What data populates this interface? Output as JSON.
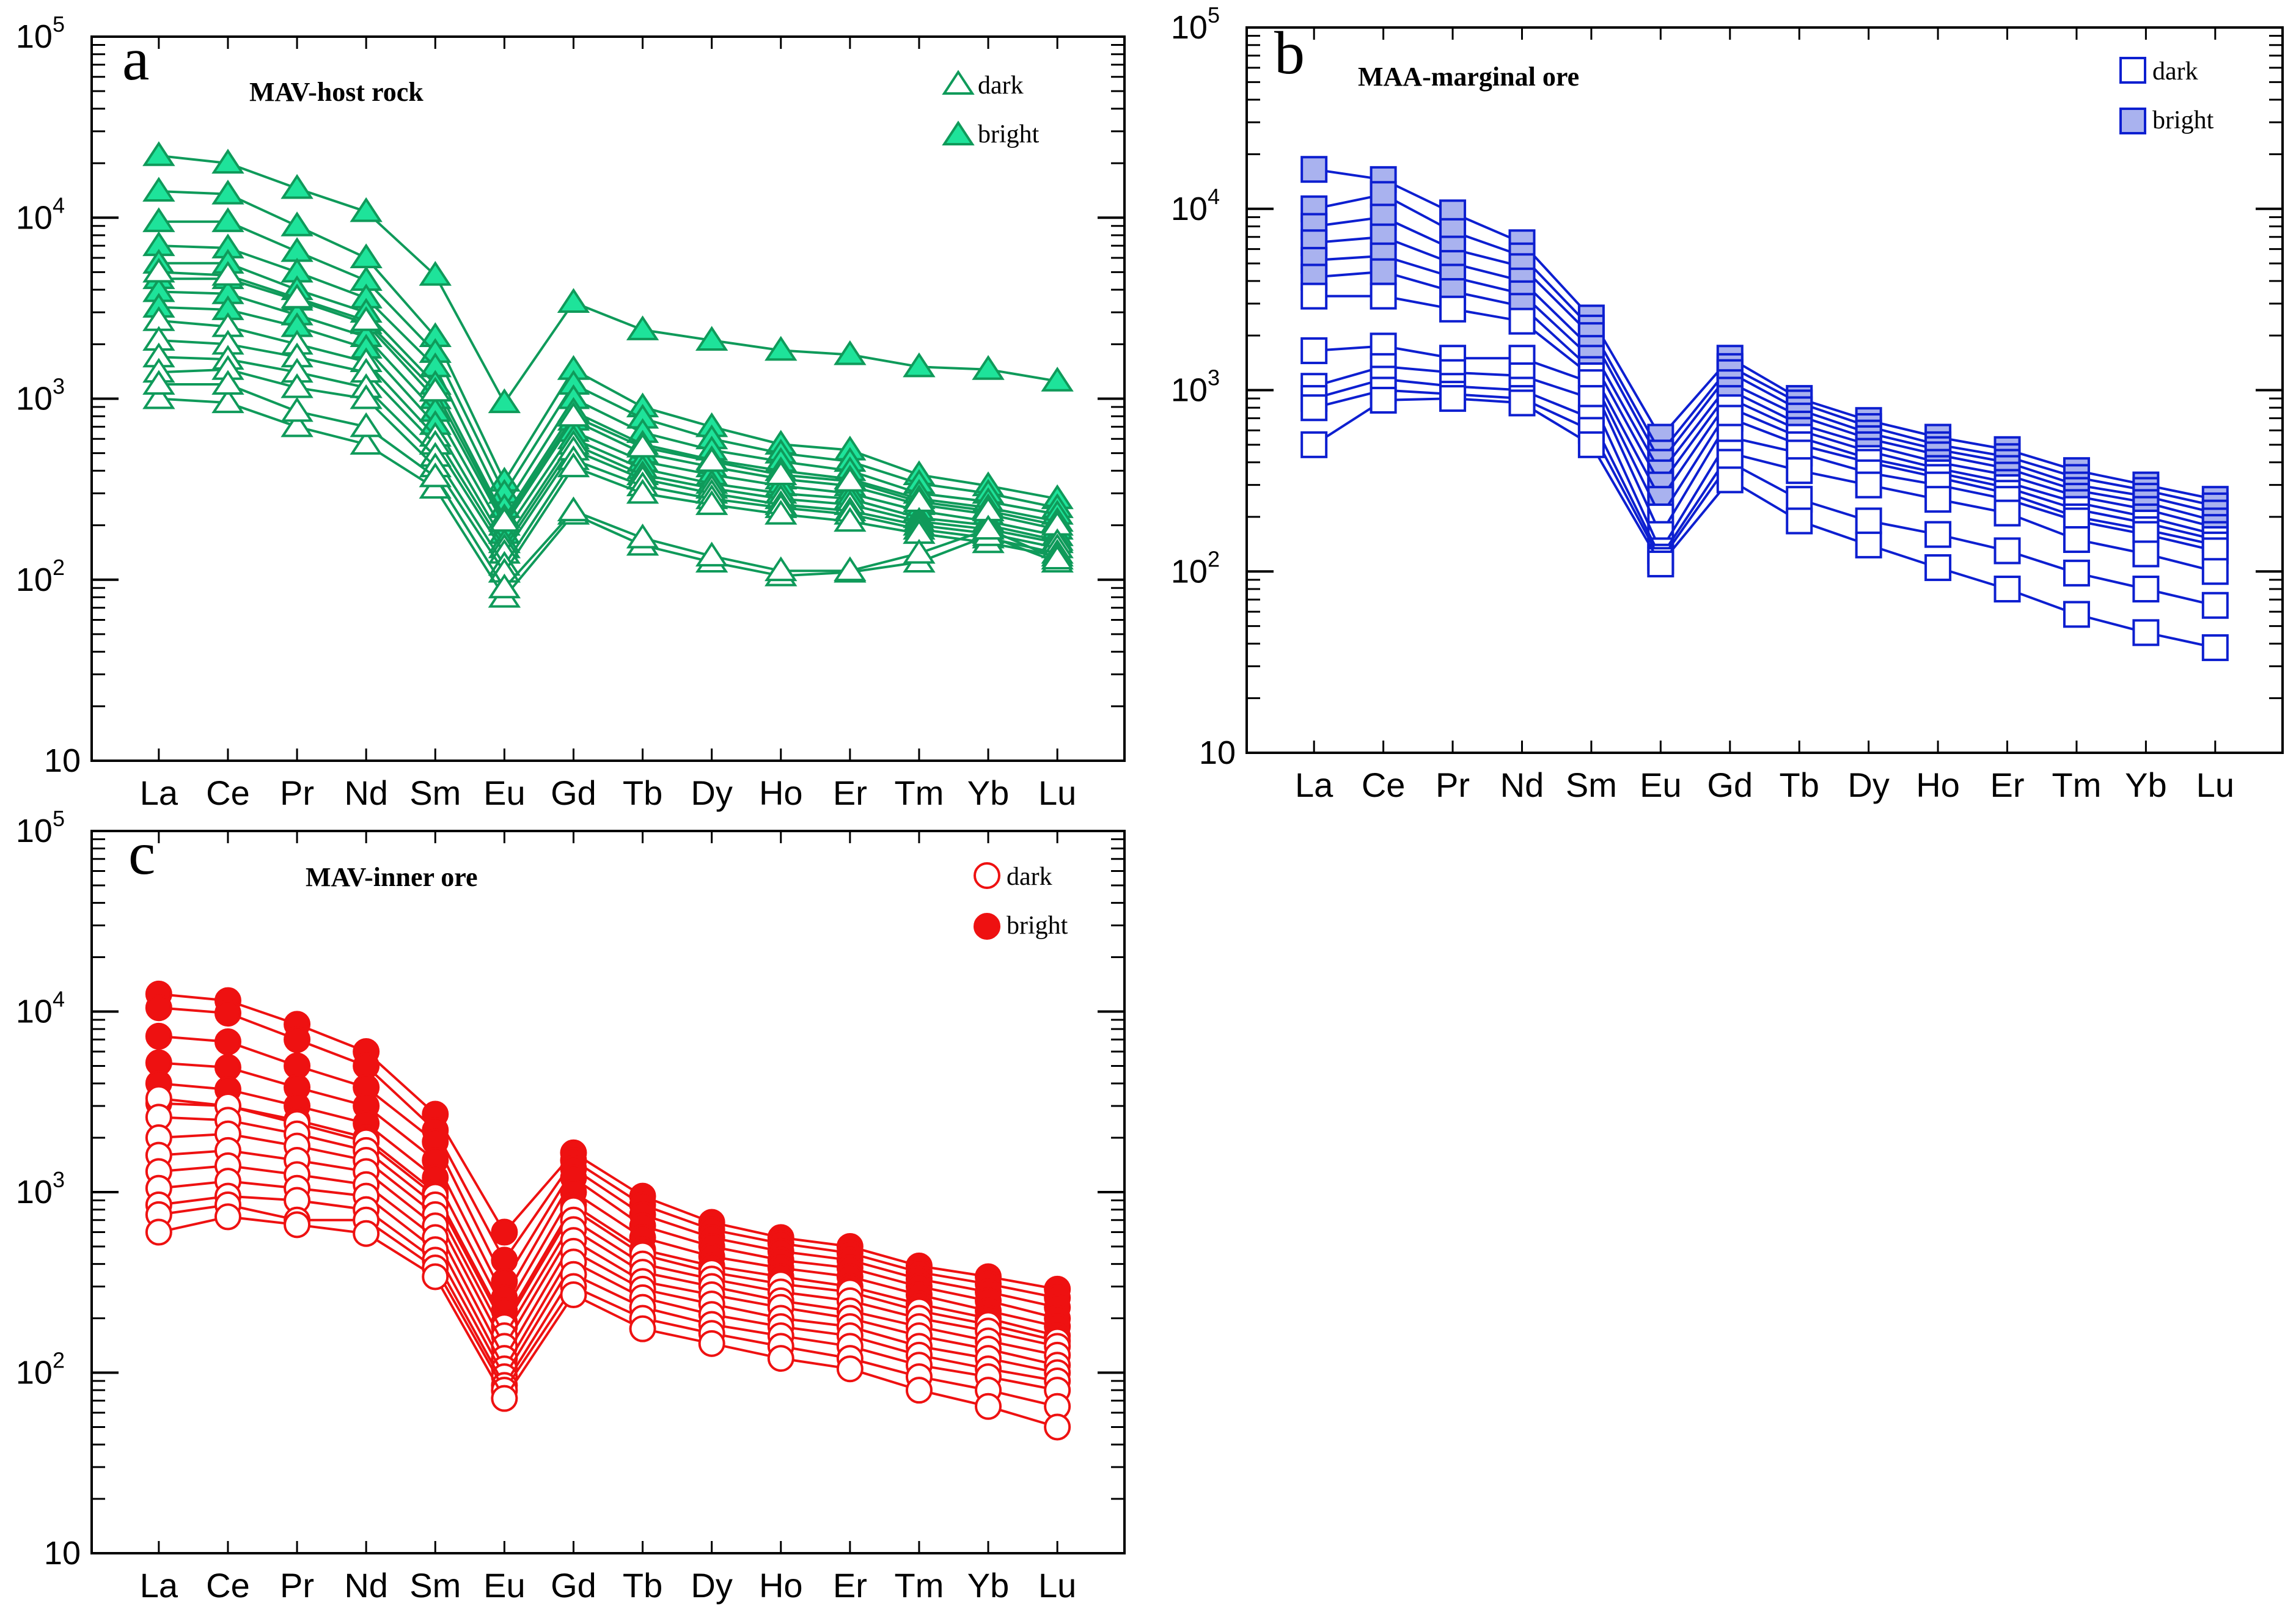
{
  "figure": {
    "categories": [
      "La",
      "Ce",
      "Pr",
      "Nd",
      "Sm",
      "Eu",
      "Gd",
      "Tb",
      "Dy",
      "Ho",
      "Er",
      "Tm",
      "Yb",
      "Lu"
    ],
    "y_ticks": [
      {
        "value": 10,
        "base": "10",
        "exp": ""
      },
      {
        "value": 100,
        "base": "10",
        "exp": "2"
      },
      {
        "value": 1000,
        "base": "10",
        "exp": "3"
      },
      {
        "value": 10000,
        "base": "10",
        "exp": "4"
      },
      {
        "value": 100000,
        "base": "10",
        "exp": "5"
      }
    ]
  },
  "chart_data": [
    {
      "type": "line",
      "panel": "a",
      "title": "MAV-host rock",
      "yscale": "log",
      "ylim": [
        10,
        100000
      ],
      "color": "#0f9a5a",
      "fill": "#1ee39a",
      "marker": "triangle",
      "legend": {
        "dark_label": "dark",
        "bright_label": "bright"
      },
      "categories": [
        "La",
        "Ce",
        "Pr",
        "Nd",
        "Sm",
        "Eu",
        "Gd",
        "Tb",
        "Dy",
        "Ho",
        "Er",
        "Tm",
        "Yb",
        "Lu"
      ],
      "series": [
        {
          "name": "bright",
          "values": [
            22000,
            20000,
            14500,
            10800,
            4800,
            950,
            3400,
            2400,
            2100,
            1850,
            1750,
            1500,
            1450,
            1250
          ]
        },
        {
          "name": "bright",
          "values": [
            14000,
            13500,
            9000,
            6000,
            2200,
            350,
            1450,
            900,
            700,
            560,
            520,
            380,
            330,
            280
          ]
        },
        {
          "name": "bright",
          "values": [
            9500,
            9500,
            6500,
            4500,
            1800,
            300,
            1200,
            780,
            600,
            500,
            450,
            340,
            300,
            250
          ]
        },
        {
          "name": "bright",
          "values": [
            7000,
            6800,
            5000,
            3600,
            1500,
            250,
            1000,
            650,
            520,
            450,
            400,
            300,
            270,
            230
          ]
        },
        {
          "name": "bright",
          "values": [
            5600,
            5600,
            4000,
            3000,
            1200,
            220,
            850,
            560,
            460,
            400,
            360,
            280,
            250,
            210
          ]
        },
        {
          "name": "bright",
          "values": [
            4600,
            4600,
            3500,
            2600,
            1000,
            200,
            760,
            500,
            420,
            360,
            330,
            260,
            230,
            190
          ]
        },
        {
          "name": "bright",
          "values": [
            3900,
            3800,
            2900,
            2200,
            850,
            180,
            660,
            450,
            380,
            330,
            300,
            240,
            210,
            175
          ]
        },
        {
          "name": "bright",
          "values": [
            3200,
            3100,
            2500,
            1900,
            720,
            160,
            600,
            410,
            340,
            300,
            280,
            220,
            200,
            165
          ]
        },
        {
          "name": "dark",
          "values": [
            5000,
            4800,
            3600,
            2700,
            1100,
            210,
            800,
            540,
            450,
            380,
            350,
            270,
            240,
            200
          ]
        },
        {
          "name": "dark",
          "values": [
            2700,
            2500,
            2000,
            1600,
            620,
            150,
            560,
            380,
            320,
            280,
            260,
            210,
            190,
            160
          ]
        },
        {
          "name": "dark",
          "values": [
            2100,
            2000,
            1700,
            1400,
            560,
            140,
            520,
            360,
            300,
            260,
            240,
            200,
            180,
            150
          ]
        },
        {
          "name": "dark",
          "values": [
            1700,
            1650,
            1400,
            1150,
            480,
            120,
            460,
            330,
            280,
            250,
            230,
            190,
            170,
            140
          ]
        },
        {
          "name": "dark",
          "values": [
            1400,
            1450,
            1150,
            1000,
            420,
            110,
            420,
            300,
            260,
            230,
            210,
            180,
            160,
            135
          ]
        },
        {
          "name": "dark",
          "values": [
            1000,
            950,
            700,
            560,
            320,
            80,
            230,
            155,
            125,
            105,
            110,
            125,
            175,
            125
          ]
        },
        {
          "name": "dark",
          "values": [
            1200,
            1200,
            850,
            700,
            370,
            90,
            240,
            170,
            135,
            112,
            112,
            140,
            190,
            130
          ]
        }
      ]
    },
    {
      "type": "line",
      "panel": "b",
      "title": "MAA-marginal ore",
      "yscale": "log",
      "ylim": [
        10,
        100000
      ],
      "color": "#0d1fd0",
      "fill": "#a9b2ef",
      "marker": "square",
      "legend": {
        "dark_label": "dark",
        "bright_label": "bright"
      },
      "categories": [
        "La",
        "Ce",
        "Pr",
        "Nd",
        "Sm",
        "Eu",
        "Gd",
        "Tb",
        "Dy",
        "Ho",
        "Er",
        "Tm",
        "Yb",
        "Lu"
      ],
      "series": [
        {
          "name": "bright",
          "values": [
            16500,
            14500,
            9500,
            6500,
            2500,
            550,
            1500,
            900,
            680,
            550,
            470,
            360,
            300,
            250
          ]
        },
        {
          "name": "bright",
          "values": [
            10000,
            12000,
            7500,
            5500,
            2200,
            450,
            1350,
            850,
            630,
            500,
            430,
            330,
            280,
            230
          ]
        },
        {
          "name": "bright",
          "values": [
            8000,
            9000,
            6000,
            4800,
            2000,
            400,
            1250,
            780,
            580,
            470,
            400,
            300,
            260,
            210
          ]
        },
        {
          "name": "bright",
          "values": [
            6500,
            7000,
            5000,
            4000,
            1700,
            350,
            1100,
            720,
            540,
            440,
            370,
            280,
            240,
            190
          ]
        },
        {
          "name": "bright",
          "values": [
            5200,
            5500,
            4200,
            3400,
            1500,
            300,
            1000,
            650,
            500,
            400,
            340,
            260,
            220,
            175
          ]
        },
        {
          "name": "bright",
          "values": [
            4200,
            4500,
            3500,
            2900,
            1300,
            250,
            900,
            600,
            460,
            370,
            310,
            240,
            200,
            160
          ]
        },
        {
          "name": "dark",
          "values": [
            3300,
            3300,
            2800,
            2400,
            1200,
            200,
            800,
            550,
            420,
            350,
            290,
            220,
            185,
            150
          ]
        },
        {
          "name": "dark",
          "values": [
            1650,
            1750,
            1500,
            1500,
            1100,
            160,
            700,
            500,
            400,
            330,
            270,
            200,
            170,
            140
          ]
        },
        {
          "name": "dark",
          "values": [
            1050,
            1350,
            1250,
            1200,
            900,
            130,
            550,
            450,
            350,
            300,
            250,
            190,
            160,
            130
          ]
        },
        {
          "name": "dark",
          "values": [
            900,
            1150,
            1050,
            1000,
            700,
            120,
            450,
            360,
            300,
            250,
            210,
            150,
            125,
            100
          ]
        },
        {
          "name": "dark",
          "values": [
            800,
            1000,
            950,
            900,
            600,
            115,
            400,
            250,
            190,
            160,
            130,
            98,
            80,
            65
          ]
        },
        {
          "name": "dark",
          "values": [
            500,
            880,
            900,
            850,
            500,
            110,
            320,
            190,
            140,
            105,
            80,
            58,
            46,
            38
          ]
        }
      ]
    },
    {
      "type": "line",
      "panel": "c",
      "title": "MAV-inner ore",
      "yscale": "log",
      "ylim": [
        10,
        100000
      ],
      "color": "#ee1111",
      "fill": "#ee1111",
      "marker": "circle",
      "legend": {
        "dark_label": "dark",
        "bright_label": "bright"
      },
      "categories": [
        "La",
        "Ce",
        "Pr",
        "Nd",
        "Sm",
        "Eu",
        "Gd",
        "Tb",
        "Dy",
        "Ho",
        "Er",
        "Tm",
        "Yb",
        "Lu"
      ],
      "series": [
        {
          "name": "bright",
          "values": [
            12500,
            11500,
            8500,
            6000,
            2700,
            600,
            1650,
            950,
            680,
            560,
            500,
            390,
            340,
            290
          ]
        },
        {
          "name": "bright",
          "values": [
            10500,
            9800,
            7000,
            5000,
            2200,
            420,
            1500,
            850,
            620,
            520,
            460,
            360,
            310,
            260
          ]
        },
        {
          "name": "bright",
          "values": [
            7300,
            6800,
            5000,
            3800,
            1900,
            320,
            1350,
            750,
            560,
            470,
            420,
            330,
            280,
            230
          ]
        },
        {
          "name": "bright",
          "values": [
            5200,
            4900,
            3800,
            3000,
            1500,
            260,
            1200,
            650,
            500,
            420,
            380,
            300,
            250,
            200
          ]
        },
        {
          "name": "bright",
          "values": [
            4000,
            3700,
            3000,
            2400,
            1200,
            220,
            1000,
            560,
            440,
            380,
            340,
            270,
            220,
            180
          ]
        },
        {
          "name": "bright",
          "values": [
            3100,
            3000,
            2500,
            2000,
            1000,
            190,
            850,
            480,
            390,
            340,
            300,
            240,
            200,
            160
          ]
        },
        {
          "name": "dark",
          "values": [
            3300,
            3000,
            2400,
            1900,
            950,
            180,
            800,
            450,
            360,
            310,
            280,
            220,
            185,
            150
          ]
        },
        {
          "name": "dark",
          "values": [
            2600,
            2500,
            2100,
            1700,
            850,
            160,
            700,
            400,
            330,
            280,
            250,
            200,
            170,
            140
          ]
        },
        {
          "name": "dark",
          "values": [
            2000,
            2100,
            1800,
            1500,
            750,
            140,
            620,
            360,
            300,
            250,
            220,
            180,
            150,
            125
          ]
        },
        {
          "name": "dark",
          "values": [
            1600,
            1700,
            1500,
            1300,
            650,
            120,
            540,
            320,
            270,
            230,
            200,
            160,
            135,
            110
          ]
        },
        {
          "name": "dark",
          "values": [
            1300,
            1400,
            1250,
            1100,
            560,
            105,
            470,
            290,
            240,
            200,
            180,
            140,
            120,
            100
          ]
        },
        {
          "name": "dark",
          "values": [
            1050,
            1150,
            1050,
            950,
            480,
            95,
            410,
            260,
            210,
            180,
            160,
            125,
            105,
            90
          ]
        },
        {
          "name": "dark",
          "values": [
            850,
            950,
            900,
            800,
            420,
            85,
            350,
            230,
            185,
            160,
            140,
            110,
            95,
            80
          ]
        },
        {
          "name": "dark",
          "values": [
            750,
            850,
            700,
            700,
            380,
            80,
            300,
            200,
            165,
            140,
            120,
            95,
            80,
            65
          ]
        },
        {
          "name": "dark",
          "values": [
            600,
            730,
            660,
            590,
            340,
            72,
            270,
            175,
            145,
            120,
            105,
            80,
            65,
            50
          ]
        }
      ]
    }
  ]
}
